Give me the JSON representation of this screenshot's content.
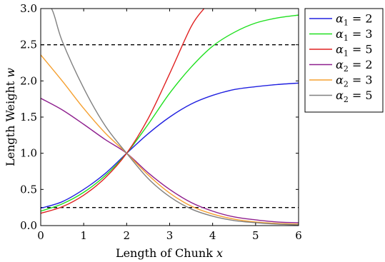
{
  "chart_data": {
    "type": "line",
    "xlabel_text": "Length of Chunk ",
    "xlabel_var": "x",
    "ylabel_text": "Length Weight ",
    "ylabel_var": "w",
    "xlim": [
      0,
      6
    ],
    "ylim": [
      0,
      3
    ],
    "xticks": [
      "0",
      "1",
      "2",
      "3",
      "4",
      "5",
      "6"
    ],
    "yticks": [
      "0.0",
      "0.5",
      "1.0",
      "1.5",
      "2.0",
      "2.5",
      "3.0"
    ],
    "grid": false,
    "legend_position": "outside-right",
    "reference_lines": [
      {
        "y": 2.5,
        "style": "dashed",
        "color": "#000000"
      },
      {
        "y": 0.25,
        "style": "dashed",
        "color": "#000000"
      }
    ],
    "series": [
      {
        "name": "α1 = 2",
        "greek": "α",
        "sub": "1",
        "value": "2",
        "color": "#2020e0",
        "x": [
          0,
          0.5,
          1,
          1.5,
          2,
          2.5,
          3,
          3.5,
          4,
          4.5,
          5,
          5.5,
          6
        ],
        "y": [
          0.24,
          0.33,
          0.5,
          0.72,
          1.0,
          1.27,
          1.5,
          1.68,
          1.8,
          1.88,
          1.92,
          1.95,
          1.97
        ]
      },
      {
        "name": "α1 = 3",
        "greek": "α",
        "sub": "1",
        "value": "3",
        "color": "#20e020",
        "x": [
          0,
          0.5,
          1,
          1.5,
          2,
          2.5,
          3,
          3.5,
          4,
          4.5,
          5,
          5.5,
          6
        ],
        "y": [
          0.2,
          0.3,
          0.46,
          0.69,
          1.0,
          1.4,
          1.83,
          2.19,
          2.48,
          2.67,
          2.8,
          2.87,
          2.91
        ]
      },
      {
        "name": "α1 = 5",
        "greek": "α",
        "sub": "1",
        "value": "5",
        "color": "#e02020",
        "x": [
          0,
          0.5,
          1,
          1.5,
          2,
          2.5,
          3,
          3.5,
          3.8
        ],
        "y": [
          0.17,
          0.26,
          0.42,
          0.66,
          1.0,
          1.48,
          2.1,
          2.75,
          3.0
        ]
      },
      {
        "name": "α2 = 2",
        "greek": "α",
        "sub": "2",
        "value": "2",
        "color": "#8e1f8e",
        "x": [
          0,
          0.5,
          1,
          1.5,
          2,
          2.5,
          3,
          3.5,
          4,
          4.5,
          5,
          5.5,
          6
        ],
        "y": [
          1.76,
          1.6,
          1.4,
          1.19,
          1.0,
          0.73,
          0.5,
          0.32,
          0.2,
          0.12,
          0.08,
          0.05,
          0.04
        ]
      },
      {
        "name": "α2 = 3",
        "greek": "α",
        "sub": "2",
        "value": "3",
        "color": "#f5a030",
        "x": [
          0,
          0.5,
          1,
          1.5,
          2,
          2.5,
          3,
          3.5,
          4,
          4.5,
          5,
          5.5,
          6
        ],
        "y": [
          2.36,
          2.0,
          1.62,
          1.28,
          1.0,
          0.7,
          0.45,
          0.27,
          0.16,
          0.09,
          0.05,
          0.03,
          0.02
        ]
      },
      {
        "name": "α2 = 5",
        "greek": "α",
        "sub": "2",
        "value": "5",
        "color": "#808080",
        "x": [
          0,
          0.25,
          0.5,
          1,
          1.5,
          2,
          2.5,
          3,
          3.5,
          4,
          4.5,
          5,
          5.5,
          6
        ],
        "y": [
          3.0,
          3.0,
          2.55,
          1.9,
          1.38,
          1.0,
          0.65,
          0.4,
          0.23,
          0.13,
          0.07,
          0.04,
          0.02,
          0.01
        ]
      }
    ]
  }
}
